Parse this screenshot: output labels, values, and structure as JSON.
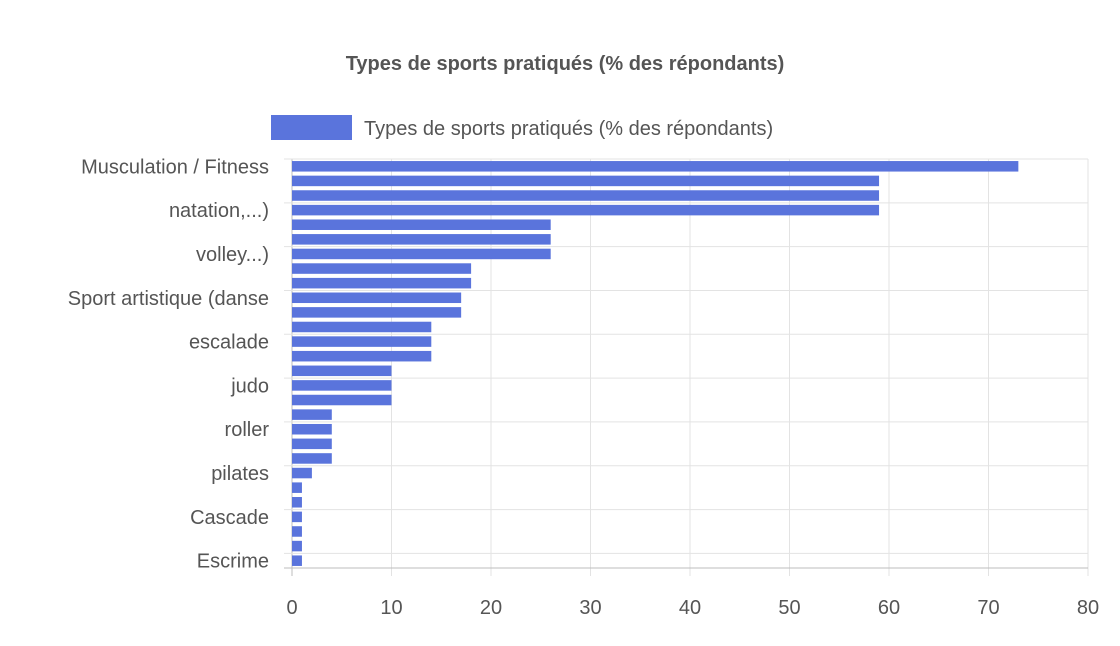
{
  "chart_data": {
    "type": "bar",
    "orientation": "horizontal",
    "title": "Types de sports pratiqués (% des répondants)",
    "legend": {
      "position": "top",
      "entries": [
        "Types de sports pratiqués (% des répondants)"
      ]
    },
    "series": [
      {
        "name": "Types de sports pratiqués (% des répondants)",
        "color": "#5a74dc",
        "values": [
          73,
          59,
          59,
          59,
          26,
          26,
          26,
          18,
          18,
          17,
          17,
          14,
          14,
          14,
          10,
          10,
          10,
          4,
          4,
          4,
          4,
          2,
          1,
          1,
          1,
          1,
          1,
          1
        ]
      }
    ],
    "category_tick_labels": [
      {
        "index": 0,
        "label": "Musculation / Fitness"
      },
      {
        "index": 3,
        "label": "natation,...)"
      },
      {
        "index": 6,
        "label": "volley...)"
      },
      {
        "index": 9,
        "label": "Sport artistique (danse"
      },
      {
        "index": 12,
        "label": "escalade"
      },
      {
        "index": 15,
        "label": "judo"
      },
      {
        "index": 18,
        "label": "roller"
      },
      {
        "index": 21,
        "label": "pilates"
      },
      {
        "index": 24,
        "label": "Cascade"
      },
      {
        "index": 27,
        "label": "Escrime"
      }
    ],
    "x_ticks": [
      0,
      10,
      20,
      30,
      40,
      50,
      60,
      70,
      80
    ],
    "xlim": [
      0,
      80
    ],
    "grid": true,
    "xlabel": "",
    "ylabel": ""
  }
}
